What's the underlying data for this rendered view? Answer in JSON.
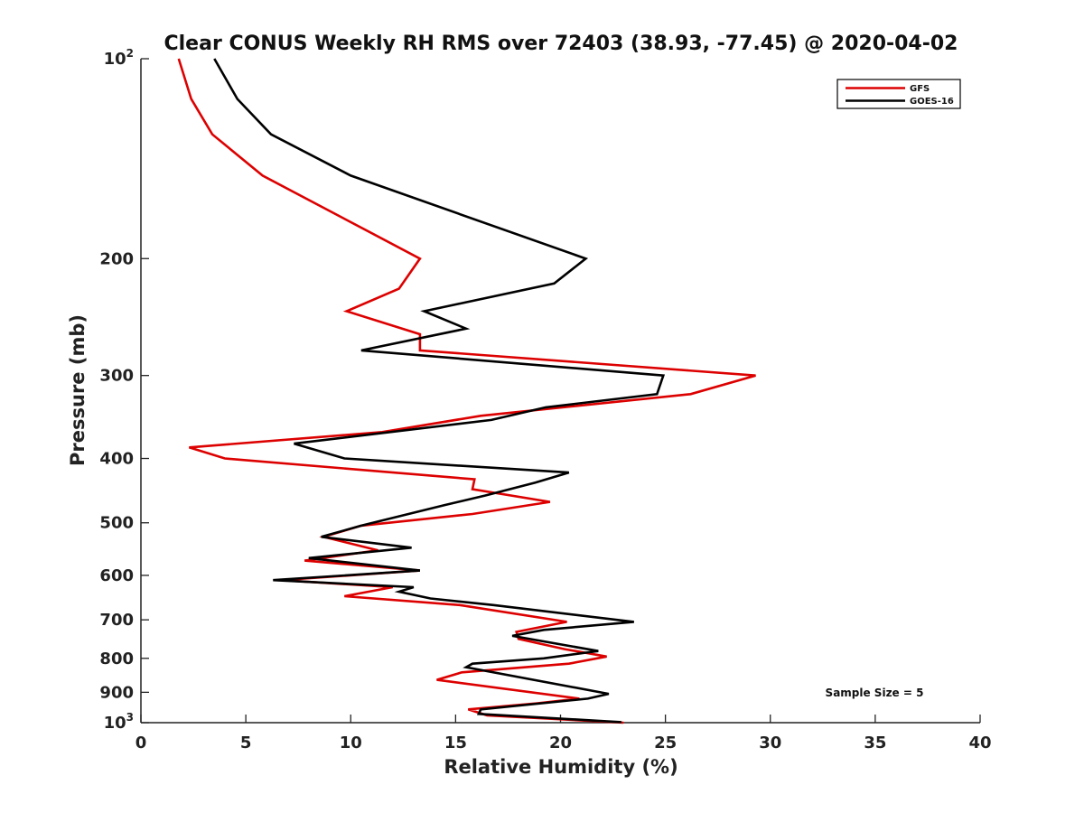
{
  "chart_data": {
    "type": "line",
    "title": "Clear CONUS Weekly RH RMS over 72403 (38.93, -77.45) @ 2020-04-02",
    "xlabel": "Relative Humidity (%)",
    "ylabel": "Pressure (mb)",
    "xlim": [
      0,
      40
    ],
    "ylim": [
      100,
      1000
    ],
    "y_scale": "log",
    "y_reversed": true,
    "x_ticks": [
      0,
      5,
      10,
      15,
      20,
      25,
      30,
      35,
      40
    ],
    "y_ticks": [
      {
        "value": 100,
        "label": "10",
        "exp": "2"
      },
      {
        "value": 200,
        "label": "200"
      },
      {
        "value": 300,
        "label": "300"
      },
      {
        "value": 400,
        "label": "400"
      },
      {
        "value": 500,
        "label": "500"
      },
      {
        "value": 600,
        "label": "600"
      },
      {
        "value": 700,
        "label": "700"
      },
      {
        "value": 800,
        "label": "800"
      },
      {
        "value": 900,
        "label": "900"
      },
      {
        "value": 1000,
        "label": "10",
        "exp": "3"
      }
    ],
    "grid": false,
    "legend_position": "top-right",
    "series": [
      {
        "name": "GFS",
        "color": "#dd0000",
        "points": [
          [
            1.8,
            100
          ],
          [
            2.4,
            115
          ],
          [
            3.4,
            130
          ],
          [
            5.8,
            150
          ],
          [
            13.3,
            200
          ],
          [
            12.3,
            222
          ],
          [
            9.8,
            240
          ],
          [
            13.3,
            260
          ],
          [
            13.3,
            275
          ],
          [
            29.3,
            300
          ],
          [
            26.2,
            320
          ],
          [
            16.2,
            345
          ],
          [
            11.5,
            365
          ],
          [
            2.3,
            385
          ],
          [
            4.0,
            400
          ],
          [
            15.9,
            430
          ],
          [
            15.8,
            445
          ],
          [
            19.5,
            465
          ],
          [
            15.8,
            485
          ],
          [
            10.5,
            505
          ],
          [
            8.7,
            525
          ],
          [
            11.3,
            550
          ],
          [
            7.8,
            570
          ],
          [
            13.3,
            590
          ],
          [
            6.7,
            610
          ],
          [
            12.0,
            625
          ],
          [
            9.7,
            645
          ],
          [
            15.2,
            665
          ],
          [
            20.3,
            705
          ],
          [
            17.9,
            730
          ],
          [
            18.0,
            748
          ],
          [
            20.2,
            775
          ],
          [
            22.2,
            795
          ],
          [
            20.4,
            815
          ],
          [
            15.3,
            840
          ],
          [
            14.1,
            862
          ],
          [
            20.9,
            920
          ],
          [
            18.9,
            935
          ],
          [
            15.6,
            955
          ],
          [
            16.5,
            975
          ],
          [
            23.0,
            1000
          ]
        ]
      },
      {
        "name": "GOES-16",
        "color": "#000000",
        "points": [
          [
            3.5,
            100
          ],
          [
            4.6,
            115
          ],
          [
            6.2,
            130
          ],
          [
            10.0,
            150
          ],
          [
            21.2,
            200
          ],
          [
            19.7,
            218
          ],
          [
            13.5,
            240
          ],
          [
            15.5,
            255
          ],
          [
            10.5,
            275
          ],
          [
            24.9,
            300
          ],
          [
            24.6,
            320
          ],
          [
            19.3,
            335
          ],
          [
            16.7,
            350
          ],
          [
            7.3,
            380
          ],
          [
            9.7,
            400
          ],
          [
            20.4,
            420
          ],
          [
            18.8,
            435
          ],
          [
            16.4,
            455
          ],
          [
            14.5,
            470
          ],
          [
            10.5,
            505
          ],
          [
            8.6,
            525
          ],
          [
            12.9,
            545
          ],
          [
            8.0,
            565
          ],
          [
            13.3,
            590
          ],
          [
            6.3,
            610
          ],
          [
            13.0,
            625
          ],
          [
            12.3,
            635
          ],
          [
            13.8,
            650
          ],
          [
            16.8,
            665
          ],
          [
            23.5,
            705
          ],
          [
            19.2,
            725
          ],
          [
            17.7,
            740
          ],
          [
            21.8,
            780
          ],
          [
            19.2,
            800
          ],
          [
            15.8,
            815
          ],
          [
            15.5,
            825
          ],
          [
            22.3,
            905
          ],
          [
            21.3,
            920
          ],
          [
            16.2,
            955
          ],
          [
            16.1,
            970
          ],
          [
            22.9,
            998
          ]
        ]
      }
    ],
    "annotations": [
      {
        "text": "Sample Size = 5"
      }
    ]
  }
}
